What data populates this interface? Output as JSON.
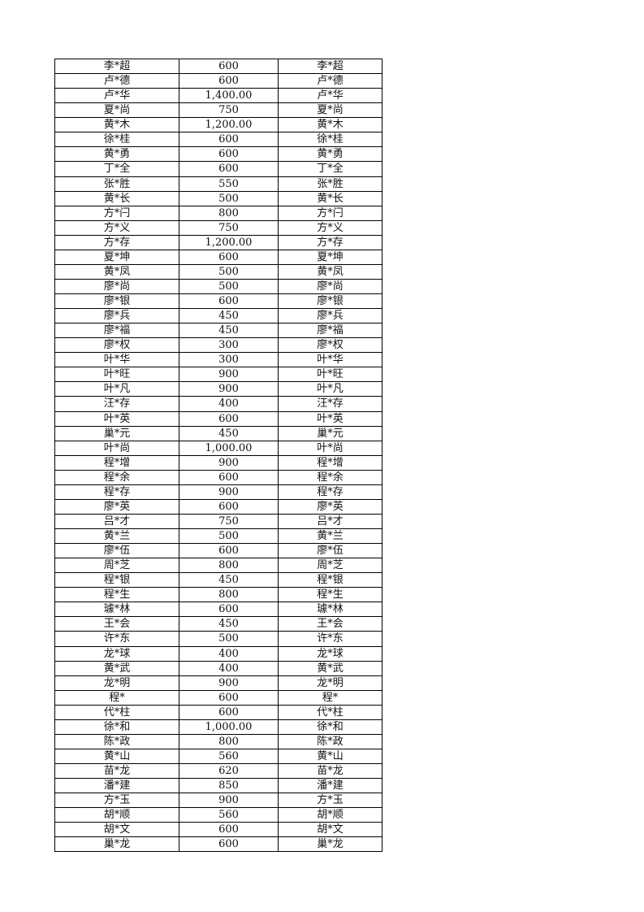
{
  "table": {
    "rows": [
      [
        "李*超",
        "600",
        "李*超"
      ],
      [
        "卢*德",
        "600",
        "卢*德"
      ],
      [
        "卢*华",
        "1,400.00",
        "卢*华"
      ],
      [
        "夏*尚",
        "750",
        "夏*尚"
      ],
      [
        "黄*木",
        "1,200.00",
        "黄*木"
      ],
      [
        "徐*桂",
        "600",
        "徐*桂"
      ],
      [
        "黄*勇",
        "600",
        "黄*勇"
      ],
      [
        "丁*全",
        "600",
        "丁*全"
      ],
      [
        "张*胜",
        "550",
        "张*胜"
      ],
      [
        "黄*长",
        "500",
        "黄*长"
      ],
      [
        "方*闩",
        "800",
        "方*闩"
      ],
      [
        "方*义",
        "750",
        "方*义"
      ],
      [
        "方*存",
        "1,200.00",
        "方*存"
      ],
      [
        "夏*坤",
        "600",
        "夏*坤"
      ],
      [
        "黄*凤",
        "500",
        "黄*凤"
      ],
      [
        "廖*尚",
        "500",
        "廖*尚"
      ],
      [
        "廖*银",
        "600",
        "廖*银"
      ],
      [
        "廖*兵",
        "450",
        "廖*兵"
      ],
      [
        "廖*福",
        "450",
        "廖*福"
      ],
      [
        "廖*权",
        "300",
        "廖*权"
      ],
      [
        "叶*华",
        "300",
        "叶*华"
      ],
      [
        "叶*旺",
        "900",
        "叶*旺"
      ],
      [
        "叶*凡",
        "900",
        "叶*凡"
      ],
      [
        "汪*存",
        "400",
        "汪*存"
      ],
      [
        "叶*英",
        "600",
        "叶*英"
      ],
      [
        "巢*元",
        "450",
        "巢*元"
      ],
      [
        "叶*尚",
        "1,000.00",
        "叶*尚"
      ],
      [
        "程*增",
        "900",
        "程*增"
      ],
      [
        "程*余",
        "600",
        "程*余"
      ],
      [
        "程*存",
        "900",
        "程*存"
      ],
      [
        "廖*英",
        "600",
        "廖*英"
      ],
      [
        "吕*才",
        "750",
        "吕*才"
      ],
      [
        "黄*兰",
        "500",
        "黄*兰"
      ],
      [
        "廖*伍",
        "600",
        "廖*伍"
      ],
      [
        "周*芝",
        "800",
        "周*芝"
      ],
      [
        "程*银",
        "450",
        "程*银"
      ],
      [
        "程*生",
        "800",
        "程*生"
      ],
      [
        "璩*林",
        "600",
        "璩*林"
      ],
      [
        "王*会",
        "450",
        "王*会"
      ],
      [
        "许*东",
        "500",
        "许*东"
      ],
      [
        "龙*球",
        "400",
        "龙*球"
      ],
      [
        "黄*武",
        "400",
        "黄*武"
      ],
      [
        "龙*明",
        "900",
        "龙*明"
      ],
      [
        "程*",
        "600",
        "程*"
      ],
      [
        "代*柱",
        "600",
        "代*柱"
      ],
      [
        "徐*和",
        "1,000.00",
        "徐*和"
      ],
      [
        "陈*政",
        "800",
        "陈*政"
      ],
      [
        "黄*山",
        "560",
        "黄*山"
      ],
      [
        "苗*龙",
        "620",
        "苗*龙"
      ],
      [
        "潘*建",
        "850",
        "潘*建"
      ],
      [
        "方*玉",
        "900",
        "方*玉"
      ],
      [
        "胡*顺",
        "560",
        "胡*顺"
      ],
      [
        "胡*文",
        "600",
        "胡*文"
      ],
      [
        "巢*龙",
        "600",
        "巢*龙"
      ]
    ]
  }
}
